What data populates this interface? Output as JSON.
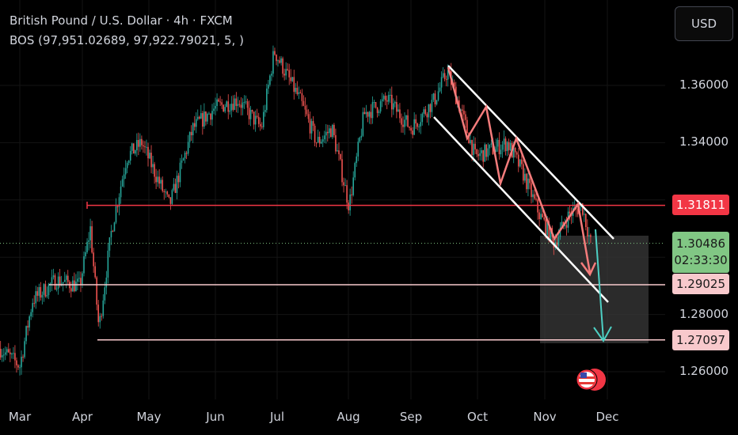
{
  "header": {
    "title": "British Pound / U.S. Dollar · 4h · FXCM",
    "indicator": "BOS (97,951.02689, 97,922.79021, 5, )"
  },
  "currency_button": "USD",
  "price_axis": {
    "ticks": [
      "1.36000",
      "1.34000",
      "1.28000",
      "1.26000"
    ],
    "labels": {
      "resistance": "1.31811",
      "current_price": "1.30486",
      "countdown": "02:33:30",
      "target1": "1.29025",
      "target2": "1.27097"
    }
  },
  "time_axis": [
    "Mar",
    "Apr",
    "May",
    "Jun",
    "Jul",
    "Aug",
    "Sep",
    "Oct",
    "Nov",
    "Dec"
  ],
  "colors": {
    "up": "#26a69a",
    "down": "#ef5350",
    "resistance": "#f23645",
    "target": "#f8c9cc",
    "current": "#81c784",
    "teal_arrow": "#4dd0c4"
  },
  "chart_data": {
    "type": "candlestick",
    "symbol": "GBPUSD",
    "ylim": [
      1.25,
      1.385
    ],
    "price_path": [
      [
        -9,
        1.268
      ],
      [
        0,
        1.262
      ],
      [
        6,
        1.285
      ],
      [
        17,
        1.292
      ],
      [
        28,
        1.29
      ],
      [
        33,
        1.31
      ],
      [
        37,
        1.275
      ],
      [
        43,
        1.31
      ],
      [
        50,
        1.335
      ],
      [
        57,
        1.34
      ],
      [
        70,
        1.318
      ],
      [
        81,
        1.345
      ],
      [
        91,
        1.352
      ],
      [
        102,
        1.355
      ],
      [
        113,
        1.345
      ],
      [
        119,
        1.372
      ],
      [
        131,
        1.355
      ],
      [
        139,
        1.34
      ],
      [
        146,
        1.345
      ],
      [
        154,
        1.318
      ],
      [
        161,
        1.35
      ],
      [
        172,
        1.355
      ],
      [
        183,
        1.345
      ],
      [
        194,
        1.355
      ],
      [
        200,
        1.365
      ],
      [
        206,
        1.352
      ],
      [
        213,
        1.335
      ],
      [
        228,
        1.34
      ],
      [
        235,
        1.33
      ],
      [
        243,
        1.315
      ],
      [
        250,
        1.305
      ],
      [
        257,
        1.315
      ],
      [
        263,
        1.318
      ],
      [
        267,
        1.305
      ]
    ],
    "levels": [
      1.31811,
      1.29025,
      1.27097
    ],
    "last_price": 1.30486
  }
}
